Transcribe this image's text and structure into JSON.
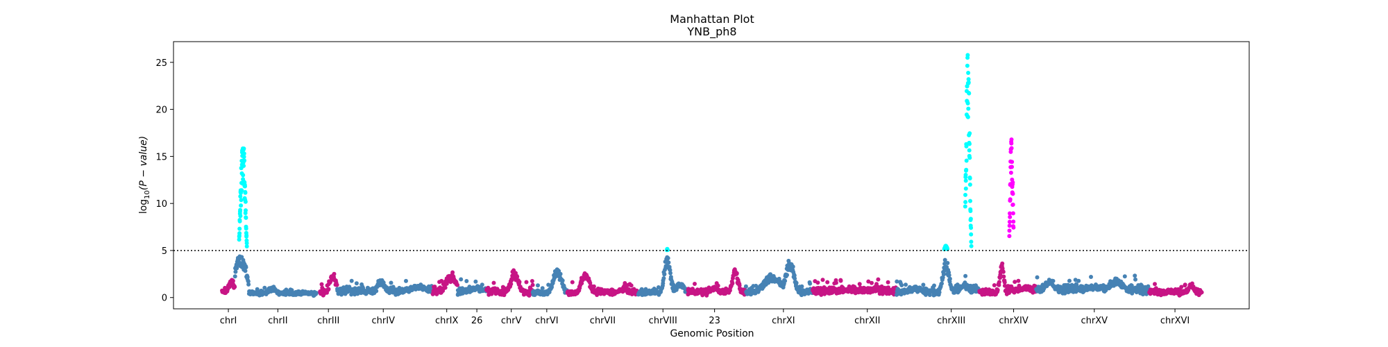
{
  "chart_data": {
    "type": "scatter",
    "title": "Manhattan Plot",
    "subtitle": "YNB_ph8",
    "xlabel": "Genomic Position",
    "ylabel_prefix": "log",
    "ylabel_sub": "10",
    "ylabel_suffix": "(P − value)",
    "ylim": [
      -1.2,
      27.2
    ],
    "yticks": [
      0,
      5,
      10,
      15,
      20,
      25
    ],
    "threshold": 5,
    "grid": false,
    "legend": "none",
    "colors": {
      "blue": "#4682b4",
      "magenta": "#c71585",
      "cyan": "#00ffff",
      "pink": "#ff00ff",
      "threshold_line": "#000000"
    },
    "chromosomes": [
      {
        "label": "chrI",
        "tick": 0.051
      },
      {
        "label": "chrII",
        "tick": 0.097
      },
      {
        "label": "chrIII",
        "tick": 0.144
      },
      {
        "label": "chrIV",
        "tick": 0.195
      },
      {
        "label": "chrIX",
        "tick": 0.254
      },
      {
        "label": "26",
        "tick": 0.282
      },
      {
        "label": "chrV",
        "tick": 0.314
      },
      {
        "label": "chrVI",
        "tick": 0.347
      },
      {
        "label": "chrVII",
        "tick": 0.399
      },
      {
        "label": "chrVIII",
        "tick": 0.455
      },
      {
        "label": "23",
        "tick": 0.503
      },
      {
        "label": "chrXI",
        "tick": 0.567
      },
      {
        "label": "chrXII",
        "tick": 0.645
      },
      {
        "label": "chrXIII",
        "tick": 0.723
      },
      {
        "label": "chrXIV",
        "tick": 0.781
      },
      {
        "label": "chrXV",
        "tick": 0.856
      },
      {
        "label": "chrXVI",
        "tick": 0.931
      }
    ],
    "segments": [
      {
        "start": 0.045,
        "end": 0.057,
        "color": "magenta",
        "base": 0.4,
        "noise": 0.8,
        "peaks": [
          {
            "center": 0.054,
            "width": 0.003,
            "height": 1.6
          }
        ]
      },
      {
        "start": 0.057,
        "end": 0.07,
        "color": "blue",
        "base": 0.8,
        "noise": 0.6,
        "peaks": [
          {
            "center": 0.062,
            "width": 0.006,
            "height": 4.0
          }
        ]
      },
      {
        "start": 0.07,
        "end": 0.133,
        "color": "blue",
        "base": 0.3,
        "noise": 0.5,
        "peaks": [
          {
            "center": 0.092,
            "width": 0.004,
            "height": 0.8
          }
        ]
      },
      {
        "start": 0.136,
        "end": 0.152,
        "color": "magenta",
        "base": 0.4,
        "noise": 0.9,
        "peaks": [
          {
            "center": 0.148,
            "width": 0.003,
            "height": 2.2
          }
        ]
      },
      {
        "start": 0.152,
        "end": 0.241,
        "color": "blue",
        "base": 0.5,
        "noise": 0.8,
        "peaks": [
          {
            "center": 0.193,
            "width": 0.004,
            "height": 1.6
          },
          {
            "center": 0.227,
            "width": 0.008,
            "height": 1.0
          }
        ]
      },
      {
        "start": 0.241,
        "end": 0.264,
        "color": "magenta",
        "base": 0.5,
        "noise": 0.7,
        "peaks": [
          {
            "center": 0.258,
            "width": 0.005,
            "height": 2.2
          }
        ]
      },
      {
        "start": 0.264,
        "end": 0.291,
        "color": "blue",
        "base": 0.4,
        "noise": 0.9,
        "peaks": [
          {
            "center": 0.282,
            "width": 0.008,
            "height": 0.8
          }
        ]
      },
      {
        "start": 0.291,
        "end": 0.334,
        "color": "magenta",
        "base": 0.4,
        "noise": 0.8,
        "peaks": [
          {
            "center": 0.317,
            "width": 0.004,
            "height": 2.4
          }
        ]
      },
      {
        "start": 0.334,
        "end": 0.366,
        "color": "blue",
        "base": 0.3,
        "noise": 0.6,
        "peaks": [
          {
            "center": 0.357,
            "width": 0.004,
            "height": 2.8
          }
        ]
      },
      {
        "start": 0.366,
        "end": 0.432,
        "color": "magenta",
        "base": 0.4,
        "noise": 0.6,
        "peaks": [
          {
            "center": 0.383,
            "width": 0.004,
            "height": 2.4
          },
          {
            "center": 0.419,
            "width": 0.006,
            "height": 0.6
          }
        ]
      },
      {
        "start": 0.432,
        "end": 0.478,
        "color": "blue",
        "base": 0.4,
        "noise": 0.6,
        "peaks": [
          {
            "center": 0.459,
            "width": 0.003,
            "height": 4.0
          },
          {
            "center": 0.471,
            "width": 0.005,
            "height": 1.2
          }
        ]
      },
      {
        "start": 0.478,
        "end": 0.532,
        "color": "magenta",
        "base": 0.4,
        "noise": 0.7,
        "peaks": [
          {
            "center": 0.503,
            "width": 0.004,
            "height": 0.8
          },
          {
            "center": 0.522,
            "width": 0.003,
            "height": 2.6
          }
        ]
      },
      {
        "start": 0.532,
        "end": 0.594,
        "color": "blue",
        "base": 0.4,
        "noise": 0.7,
        "peaks": [
          {
            "center": 0.557,
            "width": 0.009,
            "height": 2.0
          },
          {
            "center": 0.573,
            "width": 0.004,
            "height": 3.6
          }
        ]
      },
      {
        "start": 0.594,
        "end": 0.672,
        "color": "magenta",
        "base": 0.5,
        "noise": 0.8,
        "peaks": [
          {
            "center": 0.628,
            "width": 0.015,
            "height": 0.5
          },
          {
            "center": 0.651,
            "width": 0.007,
            "height": 0.6
          }
        ]
      },
      {
        "start": 0.672,
        "end": 0.712,
        "color": "blue",
        "base": 0.4,
        "noise": 0.7,
        "peaks": [
          {
            "center": 0.69,
            "width": 0.006,
            "height": 0.8
          }
        ]
      },
      {
        "start": 0.712,
        "end": 0.749,
        "color": "blue",
        "base": 0.6,
        "noise": 0.8,
        "peaks": [
          {
            "center": 0.718,
            "width": 0.003,
            "height": 3.6
          },
          {
            "center": 0.735,
            "width": 0.004,
            "height": 1.2
          }
        ]
      },
      {
        "start": 0.749,
        "end": 0.775,
        "color": "magenta",
        "base": 0.4,
        "noise": 0.6,
        "peaks": [
          {
            "center": 0.77,
            "width": 0.002,
            "height": 3.4
          }
        ]
      },
      {
        "start": 0.775,
        "end": 0.802,
        "color": "magenta",
        "base": 0.6,
        "noise": 0.8,
        "peaks": [
          {
            "center": 0.792,
            "width": 0.003,
            "height": 0.9
          }
        ]
      },
      {
        "start": 0.802,
        "end": 0.907,
        "color": "blue",
        "base": 0.6,
        "noise": 0.9,
        "peaks": [
          {
            "center": 0.815,
            "width": 0.005,
            "height": 1.6
          },
          {
            "center": 0.857,
            "width": 0.01,
            "height": 1.0
          },
          {
            "center": 0.876,
            "width": 0.007,
            "height": 1.6
          }
        ]
      },
      {
        "start": 0.907,
        "end": 0.956,
        "color": "magenta",
        "base": 0.4,
        "noise": 0.6,
        "peaks": [
          {
            "center": 0.946,
            "width": 0.003,
            "height": 1.2
          }
        ]
      }
    ],
    "highlight_peaks": [
      {
        "name": "chrI-peak",
        "color": "cyan",
        "start": 0.061,
        "end": 0.069,
        "center": 0.0645,
        "width": 0.0025,
        "height": 16.6,
        "floor": 5.2
      },
      {
        "name": "chrVIII-peak",
        "color": "cyan",
        "start": 0.457,
        "end": 0.461,
        "center": 0.459,
        "width": 0.0015,
        "height": 5.2,
        "floor": 5.0
      },
      {
        "name": "chrXIII-left-peak",
        "color": "cyan",
        "start": 0.714,
        "end": 0.722,
        "center": 0.718,
        "width": 0.004,
        "height": 5.5,
        "floor": 5.1
      },
      {
        "name": "chrXIII-main-peak",
        "color": "cyan",
        "start": 0.736,
        "end": 0.742,
        "center": 0.7385,
        "width": 0.0018,
        "height": 25.8,
        "floor": 5.4
      },
      {
        "name": "chrXIV-peak",
        "color": "pink",
        "start": 0.777,
        "end": 0.781,
        "center": 0.779,
        "width": 0.0015,
        "height": 16.8,
        "floor": 5.2
      }
    ]
  }
}
